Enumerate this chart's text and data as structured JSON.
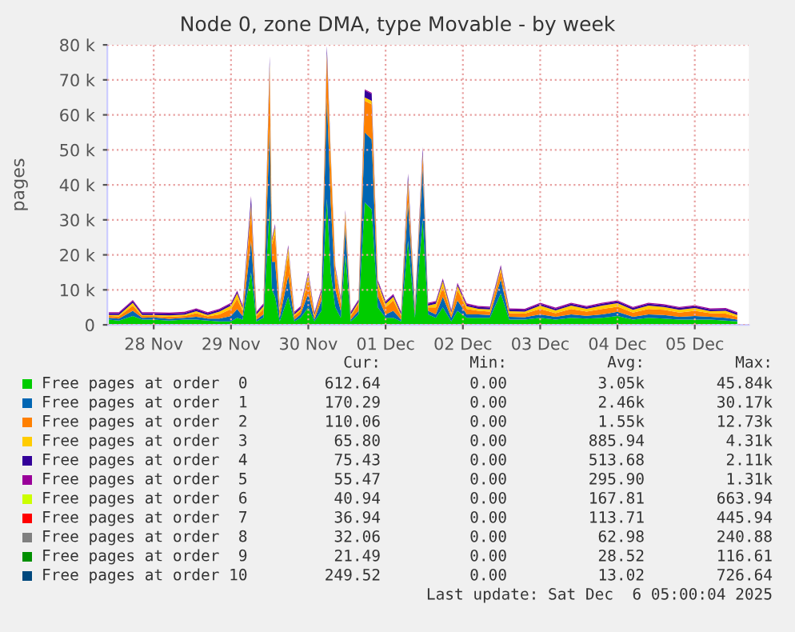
{
  "chart_data": {
    "type": "area",
    "stacked": true,
    "title": "Node 0, zone DMA, type Movable - by week",
    "ylabel": "pages",
    "x": [
      "2025-11-27T10:05",
      "2025-11-27T13:12",
      "2025-11-27T17:31",
      "2025-11-27T20:24",
      "2025-11-28T00:00",
      "2025-11-28T04:48",
      "2025-11-28T09:36",
      "2025-11-28T13:12",
      "2025-11-28T16:48",
      "2025-11-28T20:24",
      "2025-11-29T00:00",
      "2025-11-29T01:55",
      "2025-11-29T03:36",
      "2025-11-29T06:14",
      "2025-11-29T07:55",
      "2025-11-29T10:05",
      "2025-11-29T12:00",
      "2025-11-29T12:43",
      "2025-11-29T13:41",
      "2025-11-29T15:07",
      "2025-11-29T17:46",
      "2025-11-29T19:41",
      "2025-11-29T21:36",
      "2025-11-30T00:00",
      "2025-11-30T01:55",
      "2025-11-30T04:05",
      "2025-11-30T05:46",
      "2025-11-30T06:58",
      "2025-11-30T08:24",
      "2025-11-30T10:05",
      "2025-11-30T11:31",
      "2025-11-30T13:12",
      "2025-11-30T15:36",
      "2025-11-30T17:31",
      "2025-11-30T19:41",
      "2025-11-30T21:36",
      "2025-12-01T00:00",
      "2025-12-01T02:24",
      "2025-12-01T04:48",
      "2025-12-01T06:58",
      "2025-12-01T09:07",
      "2025-12-01T11:31",
      "2025-12-01T13:12",
      "2025-12-01T15:36",
      "2025-12-01T17:46",
      "2025-12-01T20:24",
      "2025-12-01T22:19",
      "2025-12-02T01:12",
      "2025-12-02T04:48",
      "2025-12-02T08:24",
      "2025-12-02T11:46",
      "2025-12-02T14:24",
      "2025-12-02T19:12",
      "2025-12-03T00:00",
      "2025-12-03T04:48",
      "2025-12-03T09:36",
      "2025-12-03T14:24",
      "2025-12-03T19:12",
      "2025-12-04T00:00",
      "2025-12-04T04:48",
      "2025-12-04T09:36",
      "2025-12-04T14:24",
      "2025-12-04T19:12",
      "2025-12-05T00:00",
      "2025-12-05T04:48",
      "2025-12-05T09:36",
      "2025-12-05T13:12"
    ],
    "xlim": [
      "2025-11-27T09:36",
      "2025-12-05T16:48"
    ],
    "xticks": [
      {
        "value": "2025-11-28",
        "label": "28 Nov"
      },
      {
        "value": "2025-11-29",
        "label": "29 Nov"
      },
      {
        "value": "2025-11-30",
        "label": "30 Nov"
      },
      {
        "value": "2025-12-01",
        "label": "01 Dec"
      },
      {
        "value": "2025-12-02",
        "label": "02 Dec"
      },
      {
        "value": "2025-12-03",
        "label": "03 Dec"
      },
      {
        "value": "2025-12-04",
        "label": "04 Dec"
      },
      {
        "value": "2025-12-05",
        "label": "05 Dec"
      }
    ],
    "ylim": [
      0,
      80000
    ],
    "yticks": [
      0,
      {
        "value": 10000,
        "label": "10 k"
      },
      {
        "value": 20000,
        "label": "20 k"
      },
      {
        "value": 30000,
        "label": "30 k"
      },
      {
        "value": 40000,
        "label": "40 k"
      },
      {
        "value": 50000,
        "label": "50 k"
      },
      {
        "value": 60000,
        "label": "60 k"
      },
      {
        "value": 70000,
        "label": "70 k"
      },
      {
        "value": 80000,
        "label": "80 k"
      }
    ],
    "grid": true,
    "legend": "bottom",
    "series": [
      {
        "name": "Free pages at order  0",
        "color": "#00cc00",
        "values": [
          1500,
          1200,
          2500,
          1500,
          1500,
          1200,
          1500,
          1500,
          1200,
          1000,
          1000,
          2000,
          1500,
          15000,
          1000,
          2000,
          34000,
          10000,
          8000,
          1000,
          8000,
          1000,
          2000,
          5000,
          1000,
          4000,
          36000,
          15000,
          5000,
          2000,
          20000,
          1000,
          3000,
          35000,
          33000,
          5000,
          2000,
          2000,
          1000,
          24000,
          2000,
          30000,
          3000,
          2000,
          5000,
          1000,
          4000,
          2000,
          2000,
          2000,
          9000,
          1500,
          1500,
          2000,
          1500,
          2000,
          1800,
          2000,
          2500,
          1500,
          2000,
          1800,
          1500,
          1500,
          1500,
          1200,
          1000
        ]
      },
      {
        "name": "Free pages at order  1",
        "color": "#0066b3",
        "values": [
          500,
          600,
          1500,
          500,
          600,
          500,
          500,
          800,
          600,
          800,
          1500,
          2500,
          1000,
          9000,
          500,
          1000,
          23000,
          8000,
          10000,
          1000,
          6000,
          500,
          1000,
          4000,
          500,
          3000,
          29000,
          20000,
          5000,
          2000,
          8000,
          500,
          1000,
          20000,
          20000,
          3000,
          1000,
          2000,
          500,
          11000,
          1000,
          15000,
          1000,
          1000,
          3000,
          1000,
          3000,
          1000,
          1000,
          800,
          4000,
          800,
          700,
          1000,
          800,
          1000,
          800,
          1000,
          1200,
          800,
          1000,
          1000,
          800,
          1000,
          800,
          800,
          500
        ]
      },
      {
        "name": "Free pages at order  2",
        "color": "#ff8000",
        "values": [
          500,
          600,
          1500,
          500,
          400,
          600,
          500,
          1000,
          600,
          1200,
          2000,
          3000,
          1500,
          9000,
          1000,
          1500,
          16000,
          5000,
          8000,
          2000,
          6000,
          1000,
          1000,
          4000,
          800,
          2000,
          12000,
          12000,
          5000,
          2000,
          3000,
          1000,
          2000,
          9000,
          10000,
          3000,
          2000,
          3000,
          1000,
          5000,
          1000,
          3000,
          1000,
          2000,
          3000,
          1000,
          3000,
          1500,
          1000,
          1000,
          2500,
          1000,
          1000,
          1500,
          1000,
          1500,
          1200,
          1500,
          1500,
          1200,
          1500,
          1500,
          1200,
          1500,
          1000,
          1200,
          800
        ]
      },
      {
        "name": "Free pages at order  3",
        "color": "#ffcc00",
        "values": [
          300,
          400,
          800,
          300,
          300,
          400,
          400,
          600,
          400,
          800,
          1000,
          1500,
          800,
          1500,
          500,
          800,
          1500,
          1000,
          2000,
          1000,
          2000,
          500,
          500,
          1500,
          500,
          500,
          500,
          1500,
          1000,
          1000,
          1000,
          500,
          500,
          1000,
          1000,
          1000,
          1000,
          1000,
          500,
          1500,
          500,
          1000,
          500,
          1000,
          1500,
          500,
          1200,
          800,
          600,
          600,
          800,
          600,
          600,
          1000,
          800,
          1000,
          800,
          1000,
          1000,
          800,
          1000,
          800,
          800,
          800,
          600,
          800,
          500
        ]
      },
      {
        "name": "Free pages at order  4",
        "color": "#330099",
        "values": [
          500,
          500,
          500,
          500,
          500,
          500,
          500,
          500,
          500,
          500,
          500,
          500,
          500,
          2000,
          500,
          500,
          2000,
          500,
          500,
          500,
          500,
          500,
          500,
          500,
          500,
          500,
          2000,
          500,
          500,
          500,
          500,
          500,
          500,
          2000,
          2000,
          500,
          500,
          500,
          500,
          1500,
          500,
          1500,
          500,
          500,
          500,
          500,
          500,
          500,
          500,
          500,
          500,
          500,
          500,
          500,
          500,
          500,
          500,
          500,
          500,
          500,
          500,
          500,
          500,
          500,
          500,
          500,
          500
        ]
      },
      {
        "name": "Free pages at order  5",
        "color": "#990099",
        "values": [
          300,
          300,
          300,
          300,
          300,
          300,
          300,
          300,
          300,
          300,
          300,
          300,
          300,
          300,
          300,
          300,
          300,
          300,
          300,
          300,
          300,
          300,
          300,
          300,
          300,
          300,
          300,
          300,
          300,
          300,
          300,
          300,
          300,
          300,
          300,
          300,
          300,
          300,
          300,
          300,
          300,
          300,
          300,
          300,
          300,
          300,
          300,
          300,
          300,
          300,
          300,
          300,
          300,
          300,
          300,
          300,
          300,
          300,
          300,
          300,
          300,
          300,
          300,
          300,
          300,
          300,
          300
        ]
      },
      {
        "name": "Free pages at order  6",
        "color": "#ccff00",
        "values": [
          null,
          null,
          null,
          null,
          null,
          null,
          null,
          null,
          null,
          null,
          null,
          null,
          null,
          null,
          null,
          null,
          null,
          null,
          null,
          null,
          null,
          null,
          null,
          null,
          null,
          null,
          null,
          null,
          null,
          null,
          null,
          null,
          null,
          null,
          null,
          null,
          null,
          null,
          null,
          null,
          null,
          null,
          null,
          null,
          null,
          null,
          null,
          null,
          null,
          null,
          null,
          null,
          null,
          null,
          null,
          null,
          null,
          null,
          null,
          null,
          null,
          null,
          null,
          null,
          null,
          null,
          null
        ]
      },
      {
        "name": "Free pages at order  7",
        "color": "#ff0000",
        "values": [
          null,
          null,
          null,
          null,
          null,
          null,
          null,
          null,
          null,
          null,
          null,
          null,
          null,
          null,
          null,
          null,
          null,
          null,
          null,
          null,
          null,
          null,
          null,
          null,
          null,
          null,
          null,
          null,
          null,
          null,
          null,
          null,
          null,
          null,
          null,
          null,
          null,
          null,
          null,
          null,
          null,
          null,
          null,
          null,
          null,
          null,
          null,
          null,
          null,
          null,
          null,
          null,
          null,
          null,
          null,
          null,
          null,
          null,
          null,
          null,
          null,
          null,
          null,
          null,
          null,
          null,
          null
        ]
      },
      {
        "name": "Free pages at order  8",
        "color": "#808080",
        "values": [
          null,
          null,
          null,
          null,
          null,
          null,
          null,
          null,
          null,
          null,
          null,
          null,
          null,
          null,
          null,
          null,
          null,
          null,
          null,
          null,
          null,
          null,
          null,
          null,
          null,
          null,
          null,
          null,
          null,
          null,
          null,
          null,
          null,
          null,
          null,
          null,
          null,
          null,
          null,
          null,
          null,
          null,
          null,
          null,
          null,
          null,
          null,
          null,
          null,
          null,
          null,
          null,
          null,
          null,
          null,
          null,
          null,
          null,
          null,
          null,
          null,
          null,
          null,
          null,
          null,
          null,
          null
        ]
      },
      {
        "name": "Free pages at order  9",
        "color": "#008f00",
        "values": [
          null,
          null,
          null,
          null,
          null,
          null,
          null,
          null,
          null,
          null,
          null,
          null,
          null,
          null,
          null,
          null,
          null,
          null,
          null,
          null,
          null,
          null,
          null,
          null,
          null,
          null,
          null,
          null,
          null,
          null,
          null,
          null,
          null,
          null,
          null,
          null,
          null,
          null,
          null,
          null,
          null,
          null,
          null,
          null,
          null,
          null,
          null,
          null,
          null,
          null,
          null,
          null,
          null,
          null,
          null,
          null,
          null,
          null,
          null,
          null,
          null,
          null,
          null,
          null,
          null,
          null,
          null
        ]
      },
      {
        "name": "Free pages at order 10",
        "color": "#00487d",
        "values": [
          null,
          null,
          null,
          null,
          null,
          null,
          null,
          null,
          null,
          null,
          null,
          null,
          null,
          null,
          null,
          null,
          null,
          null,
          null,
          null,
          null,
          null,
          null,
          null,
          null,
          null,
          null,
          null,
          null,
          null,
          null,
          null,
          null,
          null,
          null,
          null,
          null,
          null,
          null,
          null,
          null,
          null,
          null,
          null,
          null,
          null,
          null,
          null,
          null,
          null,
          null,
          null,
          null,
          null,
          null,
          null,
          null,
          null,
          null,
          null,
          null,
          null,
          null,
          null,
          null,
          null,
          null
        ]
      }
    ],
    "annotations": [
      "Cur:",
      "Min:",
      "Avg:",
      "Max:",
      "612.64",
      "0.00",
      "3.05k",
      "45.84k",
      "170.29",
      "0.00",
      "2.46k",
      "30.17k",
      "110.06",
      "0.00",
      "1.55k",
      "12.73k",
      "65.80",
      "0.00",
      "885.94",
      "4.31k",
      "75.43",
      "0.00",
      "513.68",
      "2.11k",
      "55.47",
      "0.00",
      "295.90",
      "1.31k",
      "40.94",
      "0.00",
      "167.81",
      "663.94",
      "36.94",
      "0.00",
      "113.71",
      "445.94",
      "32.06",
      "0.00",
      "62.98",
      "240.88",
      "21.49",
      "0.00",
      "28.52",
      "116.61",
      "249.52",
      "0.00",
      "13.02",
      "726.64",
      "Last update: Sat Dec  6 05:00:04 2025"
    ]
  }
}
